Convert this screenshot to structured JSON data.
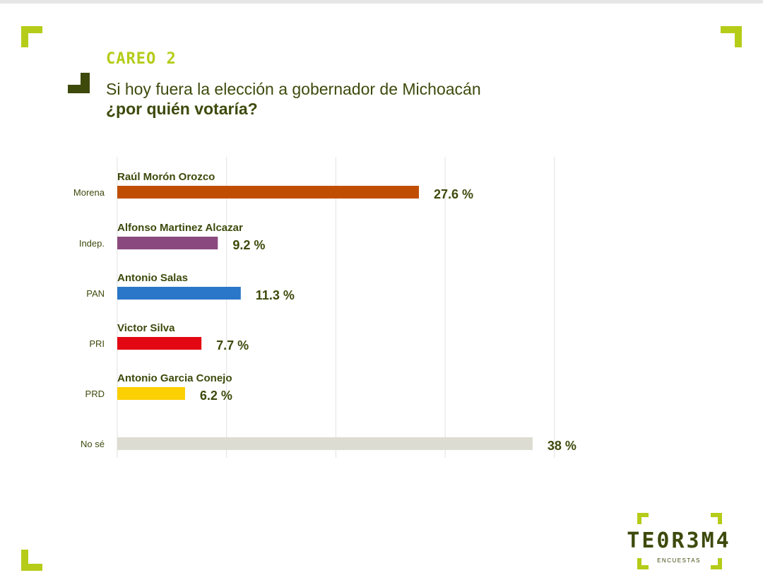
{
  "colors": {
    "accent": "#b5cc18",
    "text_dark": "#3d4a0c",
    "grid": "#e2e2e2"
  },
  "eyebrow": "CAREO 2",
  "question": {
    "line1": "Si hoy fuera la elección a gobernador de Michoacán",
    "line2": "¿por quién votaría?"
  },
  "logo": {
    "wordmark": "TE0R3M4",
    "subtitle": "ENCUESTAS"
  },
  "chart_data": {
    "type": "bar",
    "orientation": "horizontal",
    "categories": [
      "Morena",
      "Indep.",
      "PAN",
      "PRI",
      "PRD",
      "No sé"
    ],
    "candidates": [
      "Raúl Morón Orozco",
      "Alfonso Martinez Alcazar",
      "Antonio Salas",
      "Victor Silva",
      "Antonio Garcia Conejo",
      ""
    ],
    "values": [
      27.6,
      9.2,
      11.3,
      7.7,
      6.2,
      38
    ],
    "value_labels": [
      "27.6 %",
      "9.2 %",
      "11.3 %",
      "7.7 %",
      "6.2 %",
      "38 %"
    ],
    "bar_colors": [
      "#c04e02",
      "#8b4a7f",
      "#2a77c9",
      "#e30613",
      "#fccf00",
      "#dcdcd2"
    ],
    "xlim": [
      0,
      40
    ],
    "grid": true,
    "title": "",
    "xlabel": "",
    "ylabel": ""
  }
}
